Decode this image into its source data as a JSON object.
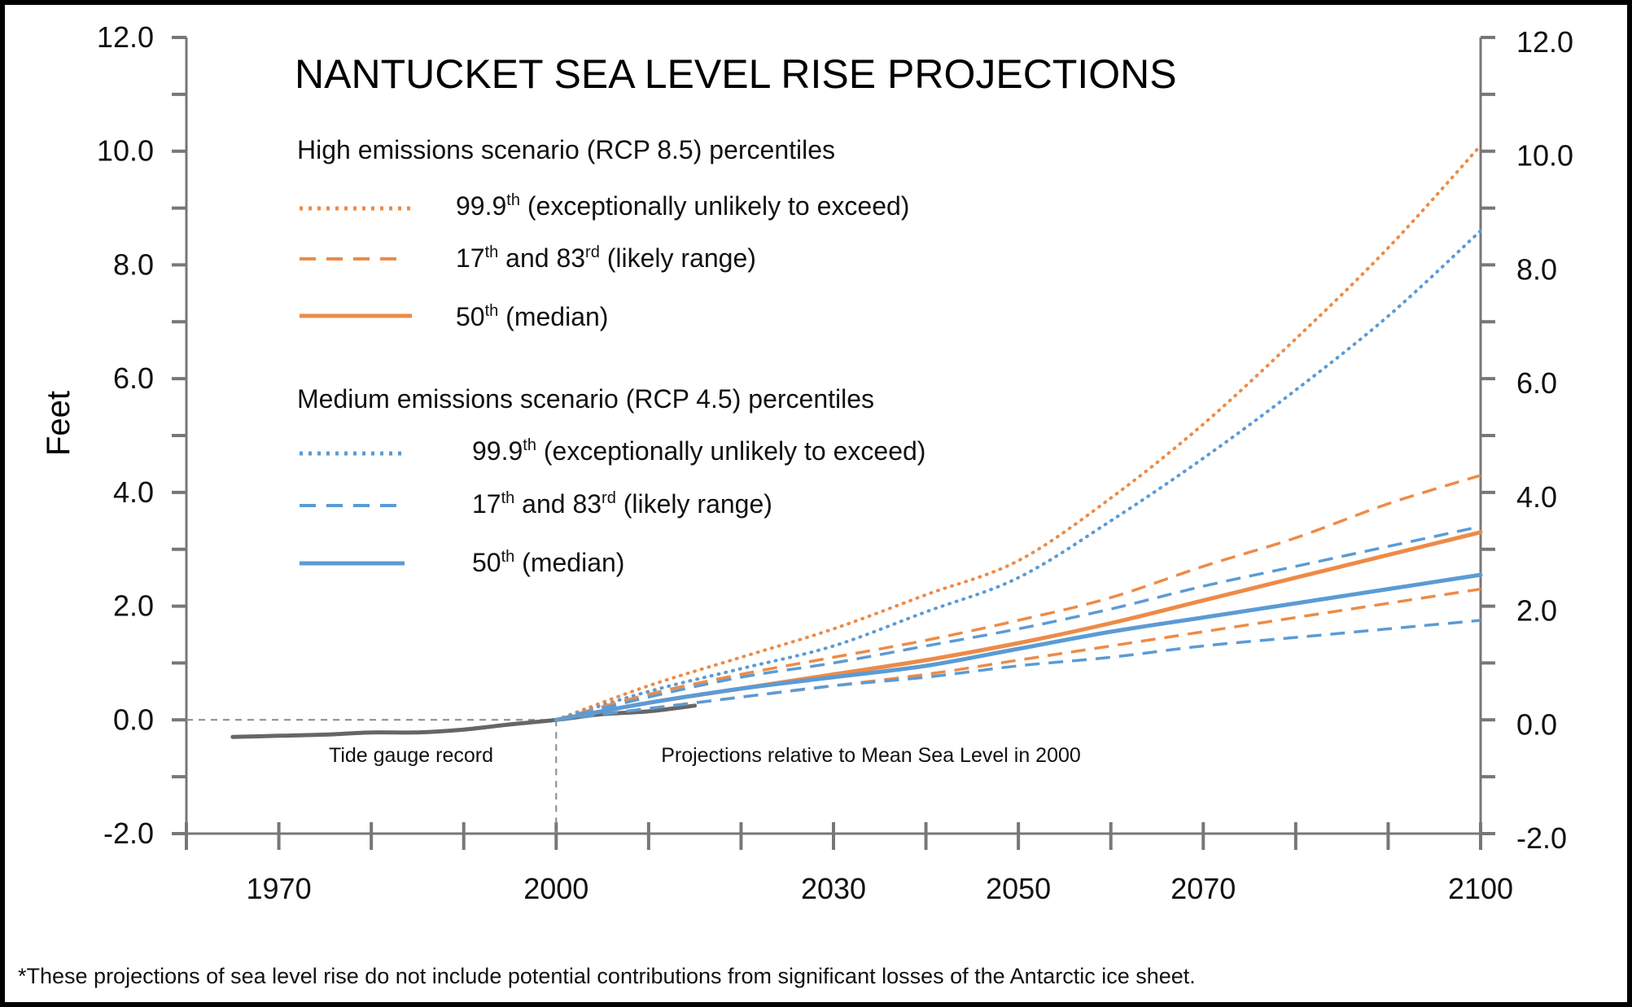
{
  "chart_data": {
    "type": "line",
    "title": "NANTUCKET SEA LEVEL RISE PROJECTIONS",
    "ylabel": "Feet",
    "xlabel": "",
    "xlim": [
      1960,
      2100
    ],
    "ylim": [
      -2.0,
      12.0
    ],
    "y_ticks": [
      "12.0",
      "10.0",
      "8.0",
      "6.0",
      "4.0",
      "2.0",
      "0.0",
      "-2.0"
    ],
    "x_tick_labels": [
      "1970",
      "2000",
      "2030",
      "2050",
      "2070",
      "2100"
    ],
    "grid": false,
    "colors": {
      "high": "#ED8B47",
      "medium": "#5B9BD5",
      "observed": "#666666",
      "axis": "#777777"
    },
    "legend": {
      "high_heading": "High emissions scenario (RCP 8.5) percentiles",
      "medium_heading": "Medium emissions scenario (RCP 4.5) percentiles",
      "items": {
        "p999_base": "99.9",
        "p999_sup": "th",
        "p999_rest": " (exceptionally unlikely to exceed)",
        "p17_base": "17",
        "p17_sup": "th",
        "p17_mid": " and 83",
        "p17_sup2": "rd",
        "p17_rest": " (likely range)",
        "p50_base": "50",
        "p50_sup": "th",
        "p50_rest": " (median)"
      }
    },
    "annotations": {
      "left": "Tide gauge record",
      "right": "Projections relative to Mean Sea Level in 2000"
    },
    "series": [
      {
        "name": "Tide gauge record",
        "style": "solid",
        "color": "observed",
        "x": [
          1965,
          1970,
          1975,
          1980,
          1985,
          1990,
          1995,
          2000,
          2005,
          2010,
          2015
        ],
        "y": [
          -0.3,
          -0.28,
          -0.26,
          -0.22,
          -0.22,
          -0.17,
          -0.08,
          0.0,
          0.1,
          0.15,
          0.25
        ]
      },
      {
        "name": "RCP 8.5 99.9th",
        "style": "dotted",
        "color": "high",
        "x": [
          2000,
          2010,
          2020,
          2030,
          2040,
          2050,
          2060,
          2070,
          2080,
          2090,
          2100
        ],
        "y": [
          0.0,
          0.6,
          1.1,
          1.6,
          2.2,
          2.8,
          3.9,
          5.2,
          6.7,
          8.3,
          10.1
        ]
      },
      {
        "name": "RCP 4.5 99.9th",
        "style": "dotted",
        "color": "medium",
        "x": [
          2000,
          2010,
          2020,
          2030,
          2040,
          2050,
          2060,
          2070,
          2080,
          2090,
          2100
        ],
        "y": [
          0.0,
          0.5,
          0.9,
          1.3,
          1.9,
          2.5,
          3.5,
          4.6,
          5.8,
          7.1,
          8.6
        ]
      },
      {
        "name": "RCP 8.5 83rd",
        "style": "dashed",
        "color": "high",
        "x": [
          2000,
          2010,
          2020,
          2030,
          2040,
          2050,
          2060,
          2070,
          2080,
          2090,
          2100
        ],
        "y": [
          0.0,
          0.45,
          0.8,
          1.1,
          1.4,
          1.75,
          2.15,
          2.7,
          3.2,
          3.8,
          4.3
        ]
      },
      {
        "name": "RCP 4.5 83rd",
        "style": "dashed",
        "color": "medium",
        "x": [
          2000,
          2010,
          2020,
          2030,
          2040,
          2050,
          2060,
          2070,
          2080,
          2090,
          2100
        ],
        "y": [
          0.0,
          0.4,
          0.75,
          1.0,
          1.3,
          1.6,
          1.95,
          2.35,
          2.7,
          3.05,
          3.4
        ]
      },
      {
        "name": "RCP 8.5 50th",
        "style": "solid",
        "color": "high",
        "x": [
          2000,
          2010,
          2020,
          2030,
          2040,
          2050,
          2060,
          2070,
          2080,
          2090,
          2100
        ],
        "y": [
          0.0,
          0.3,
          0.55,
          0.8,
          1.05,
          1.35,
          1.7,
          2.1,
          2.5,
          2.9,
          3.3
        ]
      },
      {
        "name": "RCP 4.5 50th",
        "style": "solid",
        "color": "medium",
        "x": [
          2000,
          2010,
          2020,
          2030,
          2040,
          2050,
          2060,
          2070,
          2080,
          2090,
          2100
        ],
        "y": [
          0.0,
          0.3,
          0.55,
          0.75,
          0.95,
          1.25,
          1.55,
          1.8,
          2.05,
          2.3,
          2.55
        ]
      },
      {
        "name": "RCP 8.5 17th",
        "style": "dashed",
        "color": "high",
        "x": [
          2000,
          2010,
          2020,
          2030,
          2040,
          2050,
          2060,
          2070,
          2080,
          2090,
          2100
        ],
        "y": [
          0.0,
          0.2,
          0.4,
          0.6,
          0.8,
          1.05,
          1.3,
          1.55,
          1.8,
          2.05,
          2.3
        ]
      },
      {
        "name": "RCP 4.5 17th",
        "style": "dashed",
        "color": "medium",
        "x": [
          2000,
          2010,
          2020,
          2030,
          2040,
          2050,
          2060,
          2070,
          2080,
          2090,
          2100
        ],
        "y": [
          0.0,
          0.2,
          0.4,
          0.6,
          0.75,
          0.95,
          1.1,
          1.3,
          1.45,
          1.6,
          1.75
        ]
      }
    ]
  },
  "footnote": "*These projections of sea level rise do not include potential contributions from significant losses of the Antarctic ice sheet."
}
